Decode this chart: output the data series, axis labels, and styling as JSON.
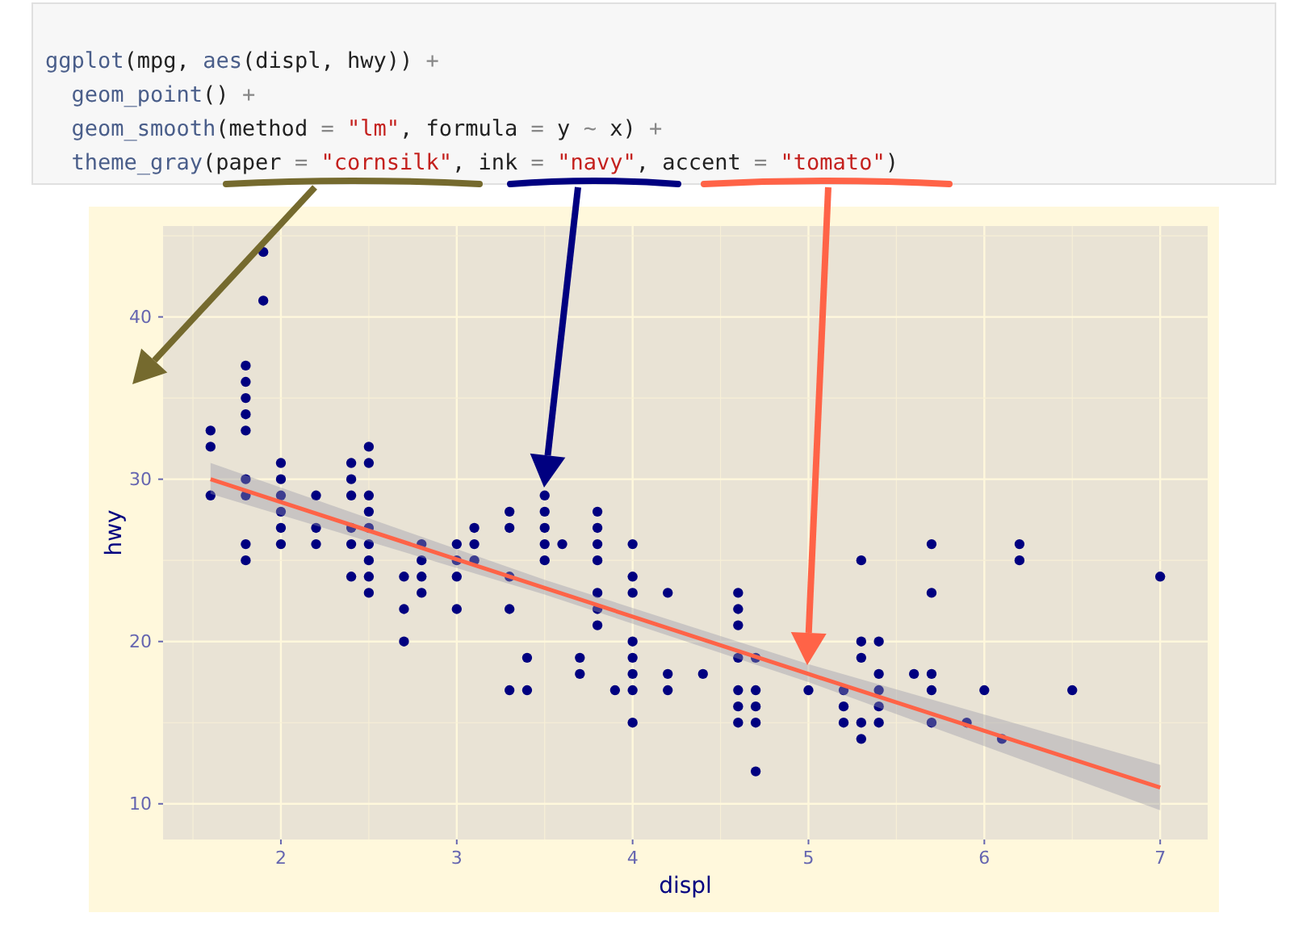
{
  "chart_data": {
    "type": "scatter",
    "annotations": [
      "ggplot(mpg, aes(displ, hwy)) +",
      "  geom_point() +",
      "  geom_smooth(method = \"lm\", formula = y ~ x) +",
      "  theme_gray(paper = \"cornsilk\", ink = \"navy\", accent = \"tomato\")"
    ],
    "xlabel": "displ",
    "ylabel": "hwy",
    "xlim": [
      1.33,
      7.27
    ],
    "ylim": [
      7.8,
      45.6
    ],
    "xticks": [
      2,
      3,
      4,
      5,
      6,
      7
    ],
    "yticks": [
      10,
      20,
      30,
      40
    ],
    "grid": true,
    "marker": "circle",
    "series": [
      {
        "color": "#000080",
        "x": [
          1.6,
          1.6,
          1.6,
          1.8,
          1.8,
          1.8,
          1.8,
          1.8,
          1.8,
          1.8,
          1.8,
          1.8,
          1.9,
          1.9,
          2.0,
          2.0,
          2.0,
          2.0,
          2.0,
          2.0,
          2.2,
          2.2,
          2.2,
          2.4,
          2.4,
          2.4,
          2.4,
          2.4,
          2.4,
          2.5,
          2.5,
          2.5,
          2.5,
          2.5,
          2.5,
          2.5,
          2.5,
          2.5,
          2.7,
          2.7,
          2.7,
          2.8,
          2.8,
          2.8,
          2.8,
          3.0,
          3.0,
          3.0,
          3.0,
          3.1,
          3.1,
          3.1,
          3.3,
          3.3,
          3.3,
          3.3,
          3.3,
          3.4,
          3.4,
          3.5,
          3.5,
          3.5,
          3.5,
          3.5,
          3.6,
          3.7,
          3.7,
          3.8,
          3.8,
          3.8,
          3.8,
          3.8,
          3.8,
          3.8,
          3.9,
          4.0,
          4.0,
          4.0,
          4.0,
          4.0,
          4.0,
          4.0,
          4.0,
          4.2,
          4.2,
          4.2,
          4.4,
          4.6,
          4.6,
          4.6,
          4.6,
          4.6,
          4.6,
          4.6,
          4.7,
          4.7,
          4.7,
          4.7,
          4.7,
          5.0,
          5.2,
          5.2,
          5.2,
          5.3,
          5.3,
          5.3,
          5.3,
          5.3,
          5.4,
          5.4,
          5.4,
          5.4,
          5.4,
          5.6,
          5.7,
          5.7,
          5.7,
          5.7,
          5.7,
          5.9,
          6.0,
          6.1,
          6.2,
          6.2,
          6.5,
          7.0
        ],
        "values": [
          33,
          32,
          29,
          37,
          36,
          35,
          34,
          33,
          30,
          29,
          26,
          25,
          44,
          41,
          31,
          30,
          29,
          28,
          27,
          26,
          29,
          27,
          26,
          31,
          30,
          29,
          27,
          26,
          24,
          32,
          31,
          29,
          28,
          27,
          26,
          25,
          24,
          23,
          24,
          22,
          20,
          26,
          25,
          24,
          23,
          26,
          25,
          24,
          22,
          27,
          26,
          25,
          28,
          27,
          24,
          22,
          17,
          19,
          17,
          29,
          28,
          27,
          26,
          25,
          26,
          19,
          18,
          28,
          27,
          26,
          25,
          23,
          22,
          21,
          17,
          26,
          24,
          23,
          20,
          19,
          18,
          17,
          15,
          23,
          18,
          17,
          18,
          23,
          22,
          21,
          19,
          17,
          16,
          15,
          19,
          17,
          16,
          15,
          12,
          17,
          17,
          16,
          15,
          25,
          20,
          19,
          15,
          14,
          20,
          18,
          17,
          16,
          15,
          18,
          26,
          23,
          18,
          17,
          15,
          15,
          17,
          14,
          26,
          25,
          17,
          24
        ]
      },
      {
        "type": "line",
        "color": "#ff6347",
        "marker": "none",
        "x": [
          1.6,
          3.5,
          5,
          7
        ],
        "values": [
          30.0,
          23.3,
          18.0,
          11.0
        ],
        "lower": [
          29.1,
          22.9,
          17.5,
          9.6
        ],
        "upper": [
          31.0,
          23.8,
          18.6,
          12.4
        ]
      }
    ]
  }
}
